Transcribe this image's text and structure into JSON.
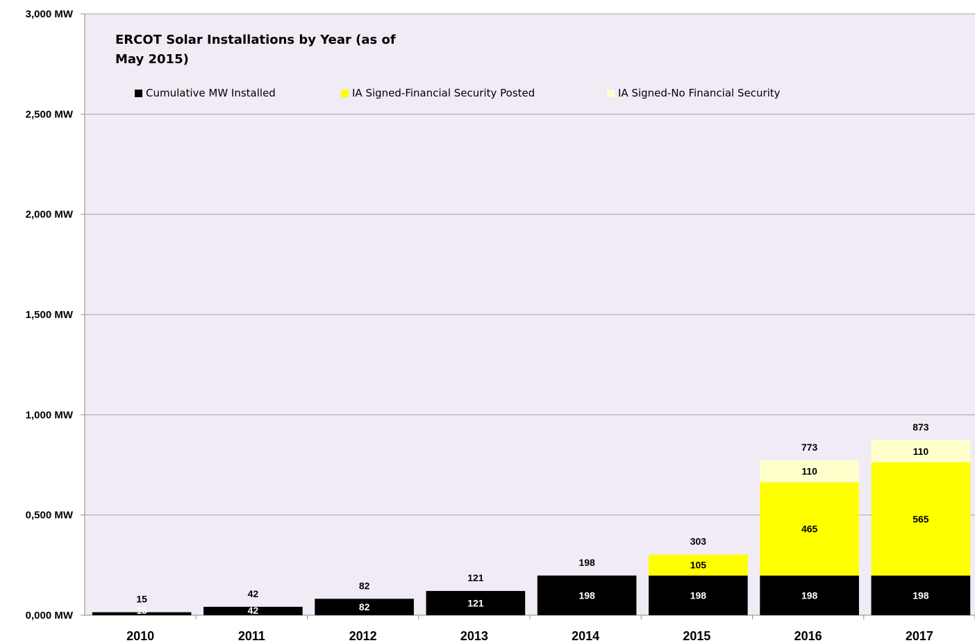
{
  "chart_data": {
    "type": "bar",
    "stacked": true,
    "title": "ERCOT Solar Installations by Year  (as of May 2015)",
    "xlabel": "",
    "ylabel": "",
    "categories": [
      "2010",
      "2011",
      "2012",
      "2013",
      "2014",
      "2015",
      "2016",
      "2017"
    ],
    "series": [
      {
        "name": "Cumulative MW Installed",
        "color": "#000000",
        "label_color": "#ffffff",
        "values": [
          15,
          42,
          82,
          121,
          198,
          198,
          198,
          198
        ]
      },
      {
        "name": "IA Signed-Financial Security Posted",
        "color": "#ffff00",
        "label_color": "#000000",
        "values": [
          0,
          0,
          0,
          0,
          0,
          105,
          465,
          565
        ]
      },
      {
        "name": "IA Signed-No Financial Security",
        "color": "#ffffcc",
        "label_color": "#000000",
        "values": [
          0,
          0,
          0,
          0,
          0,
          0,
          110,
          110
        ]
      }
    ],
    "totals": [
      15,
      42,
      82,
      121,
      198,
      303,
      773,
      873
    ],
    "ylim": [
      0,
      3000
    ],
    "yticks": [
      0,
      500,
      1000,
      1500,
      2000,
      2500,
      3000
    ],
    "ytick_labels": [
      "0,000  MW",
      "0,500  MW",
      "1,000  MW",
      "1,500  MW",
      "2,000  MW",
      "2,500  MW",
      "3,000  MW"
    ],
    "grid": true,
    "legend_position": "top",
    "plot_background": "#f0ebf5"
  }
}
